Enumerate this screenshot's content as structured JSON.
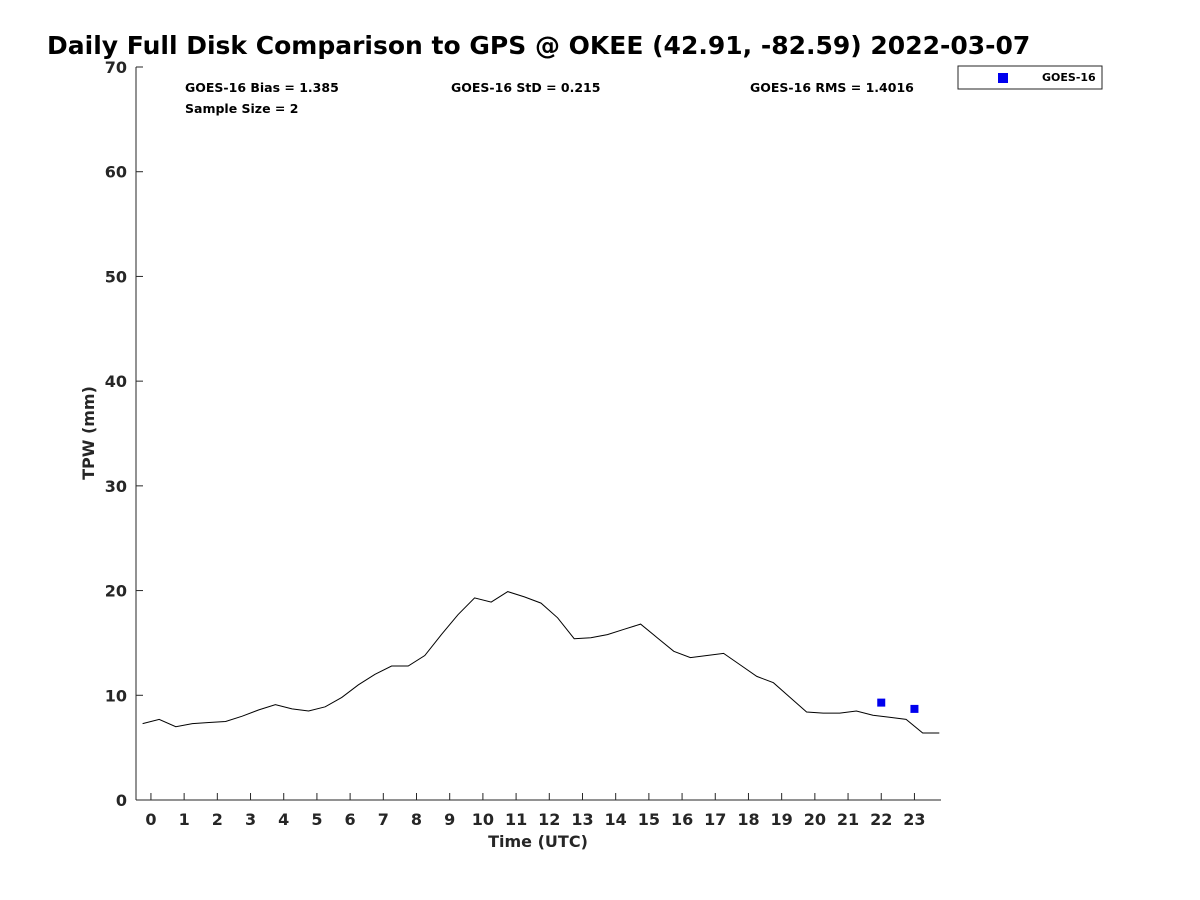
{
  "chart_data": {
    "type": "line",
    "title": "Daily Full Disk Comparison to GPS @ OKEE (42.91, -82.59) 2022-03-07",
    "xlabel": "Time (UTC)",
    "ylabel": "TPW (mm)",
    "xlim": [
      -0.45,
      23.8
    ],
    "ylim": [
      0,
      70
    ],
    "x_ticks": [
      0,
      1,
      2,
      3,
      4,
      5,
      6,
      7,
      8,
      9,
      10,
      11,
      12,
      13,
      14,
      15,
      16,
      17,
      18,
      19,
      20,
      21,
      22,
      23
    ],
    "y_ticks": [
      0,
      10,
      20,
      30,
      40,
      50,
      60,
      70
    ],
    "grid": false,
    "legend": {
      "placement": "top-right outside",
      "entries": [
        "GOES-16"
      ]
    },
    "colors": {
      "gps_line": "#000000",
      "goes16": "#0000ee",
      "axes": "#262626"
    },
    "stats": {
      "bias": "GOES-16 Bias = 1.385",
      "std": "GOES-16 StD = 0.215",
      "rms": "GOES-16 RMS = 1.4016",
      "sample": "Sample Size = 2"
    },
    "series": [
      {
        "kind": "line",
        "x": [
          -0.25,
          0.25,
          0.75,
          1.25,
          1.75,
          2.25,
          2.75,
          3.25,
          3.75,
          4.25,
          4.75,
          5.25,
          5.75,
          6.25,
          6.75,
          7.25,
          7.75,
          8.25,
          8.75,
          9.25,
          9.75,
          10.25,
          10.75,
          11.25,
          11.75,
          12.25,
          12.75,
          13.25,
          13.75,
          14.25,
          14.75,
          15.25,
          15.75,
          16.25,
          16.75,
          17.25,
          17.75,
          18.25,
          18.75,
          19.25,
          19.75,
          20.25,
          20.75,
          21.25,
          21.75,
          22.25,
          22.75,
          23.25,
          23.75
        ],
        "y": [
          7.3,
          7.7,
          7.0,
          7.3,
          7.4,
          7.5,
          8.0,
          8.6,
          9.1,
          8.7,
          8.5,
          8.9,
          9.8,
          11.0,
          12.0,
          12.8,
          12.8,
          13.8,
          15.8,
          17.7,
          19.3,
          18.9,
          19.9,
          19.4,
          18.8,
          17.4,
          15.4,
          15.5,
          15.8,
          16.3,
          16.8,
          15.5,
          14.2,
          13.6,
          13.8,
          14.0,
          12.9,
          11.8,
          11.2,
          9.8,
          8.4,
          8.3,
          8.3,
          8.5,
          8.1,
          7.9,
          7.7,
          6.4,
          6.4
        ]
      },
      {
        "name": "GOES-16",
        "kind": "scatter",
        "x": [
          22,
          23
        ],
        "y": [
          9.3,
          8.7
        ]
      }
    ]
  }
}
